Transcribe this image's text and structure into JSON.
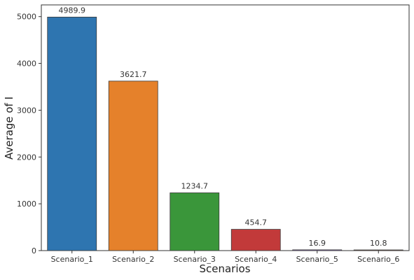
{
  "chart_data": {
    "type": "bar",
    "title": "",
    "xlabel": "Scenarios",
    "ylabel": "Average of I",
    "categories": [
      "Scenario_1",
      "Scenario_2",
      "Scenario_3",
      "Scenario_4",
      "Scenario_5",
      "Scenario_6"
    ],
    "values": [
      4989.9,
      3621.7,
      1234.7,
      454.7,
      16.9,
      10.8
    ],
    "value_labels": [
      "4989.9",
      "3621.7",
      "1234.7",
      "454.7",
      "16.9",
      "10.8"
    ],
    "colors": [
      "#2e75b0",
      "#e5812b",
      "#3a963a",
      "#c23a3a",
      "#8f6bbf",
      "#8e5a4e"
    ],
    "bar_edge_color": "#3a3a3a",
    "ylim": [
      0,
      5250
    ],
    "yticks": [
      0,
      1000,
      2000,
      3000,
      4000,
      5000
    ],
    "ytick_labels": [
      "0",
      "1000",
      "2000",
      "3000",
      "4000",
      "5000"
    ],
    "grid": false,
    "legend": "none"
  }
}
